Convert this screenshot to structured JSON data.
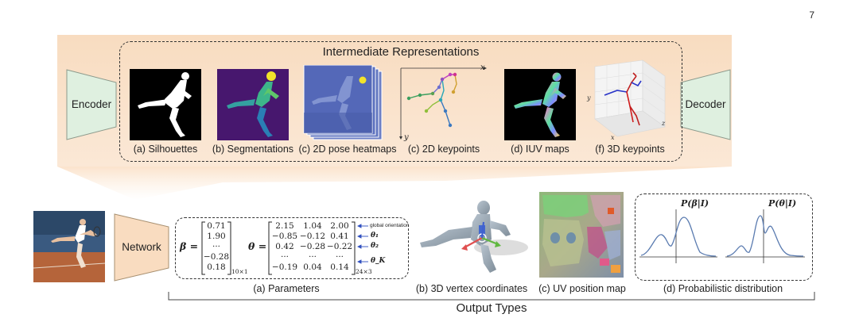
{
  "page_number": "7",
  "blocks": {
    "encoder": "Encoder",
    "decoder": "Decoder",
    "network": "Network"
  },
  "intermediate": {
    "title": "Intermediate Representations",
    "items": [
      "(a) Silhouettes",
      "(b) Segmentations",
      "(c) 2D pose heatmaps",
      "(c) 2D keypoints",
      "(d) IUV maps",
      "(f) 3D keypoints"
    ],
    "axis_x": "x",
    "axis_y": "y",
    "axis_z": "z"
  },
  "output": {
    "title": "Output Types",
    "items": [
      "(a) Parameters",
      "(b) 3D vertex coordinates",
      "(c) UV position map",
      "(d) Probabilistic distribution"
    ],
    "beta_symbol": "β =",
    "beta_values": [
      "0.71",
      "1.90",
      "···",
      "−0.28",
      "0.18"
    ],
    "beta_size": "10×1",
    "theta_symbol": "θ =",
    "theta_rows": [
      [
        "2.15",
        "1.04",
        "2.00"
      ],
      [
        "−0.85",
        "−0.12",
        "0.41"
      ],
      [
        "0.42",
        "−0.28",
        "−0.22"
      ],
      [
        "···",
        "···",
        "···"
      ],
      [
        "−0.19",
        "0.04",
        "0.14"
      ]
    ],
    "theta_size": "24×3",
    "theta_notes": [
      "global orientation",
      "θ₁",
      "θ₂",
      "θ_K"
    ],
    "prob_beta": "P(β|I)",
    "prob_theta": "P(θ|I)"
  }
}
